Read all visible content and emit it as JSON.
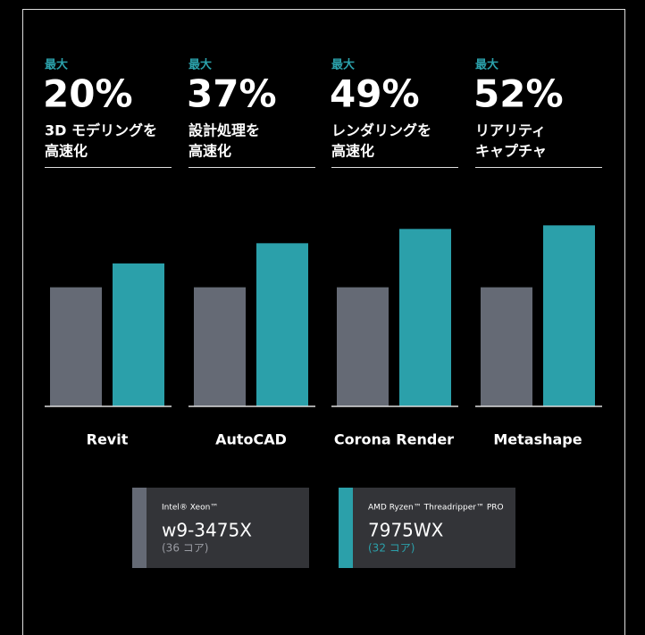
{
  "chart_data": {
    "type": "bar",
    "headlines": [
      {
        "prefix": "最大",
        "value": 20,
        "value_label": "20%",
        "description": [
          "3D モデリングを",
          "高速化"
        ]
      },
      {
        "prefix": "最大",
        "value": 37,
        "value_label": "37%",
        "description": [
          "設計処理を",
          "高速化"
        ]
      },
      {
        "prefix": "最大",
        "value": 49,
        "value_label": "49%",
        "description": [
          "レンダリングを",
          "高速化"
        ]
      },
      {
        "prefix": "最大",
        "value": 52,
        "value_label": "52%",
        "description": [
          "リアリティ",
          "キャプチャ"
        ]
      }
    ],
    "categories": [
      "Revit",
      "AutoCAD",
      "Corona Render",
      "Metashape"
    ],
    "series": [
      {
        "name": "w9-3475X",
        "brand": "Intel® Xeon™",
        "cores": "(36 コア)",
        "color": "#656a75",
        "values": [
          100,
          100,
          100,
          100
        ]
      },
      {
        "name": "7975WX",
        "brand": "AMD Ryzen™ Threadripper™ PRO",
        "cores": "(32 コア)",
        "color": "#2ba0aa",
        "values": [
          120,
          137,
          149,
          152
        ]
      }
    ],
    "ylim": [
      0,
      180
    ]
  }
}
